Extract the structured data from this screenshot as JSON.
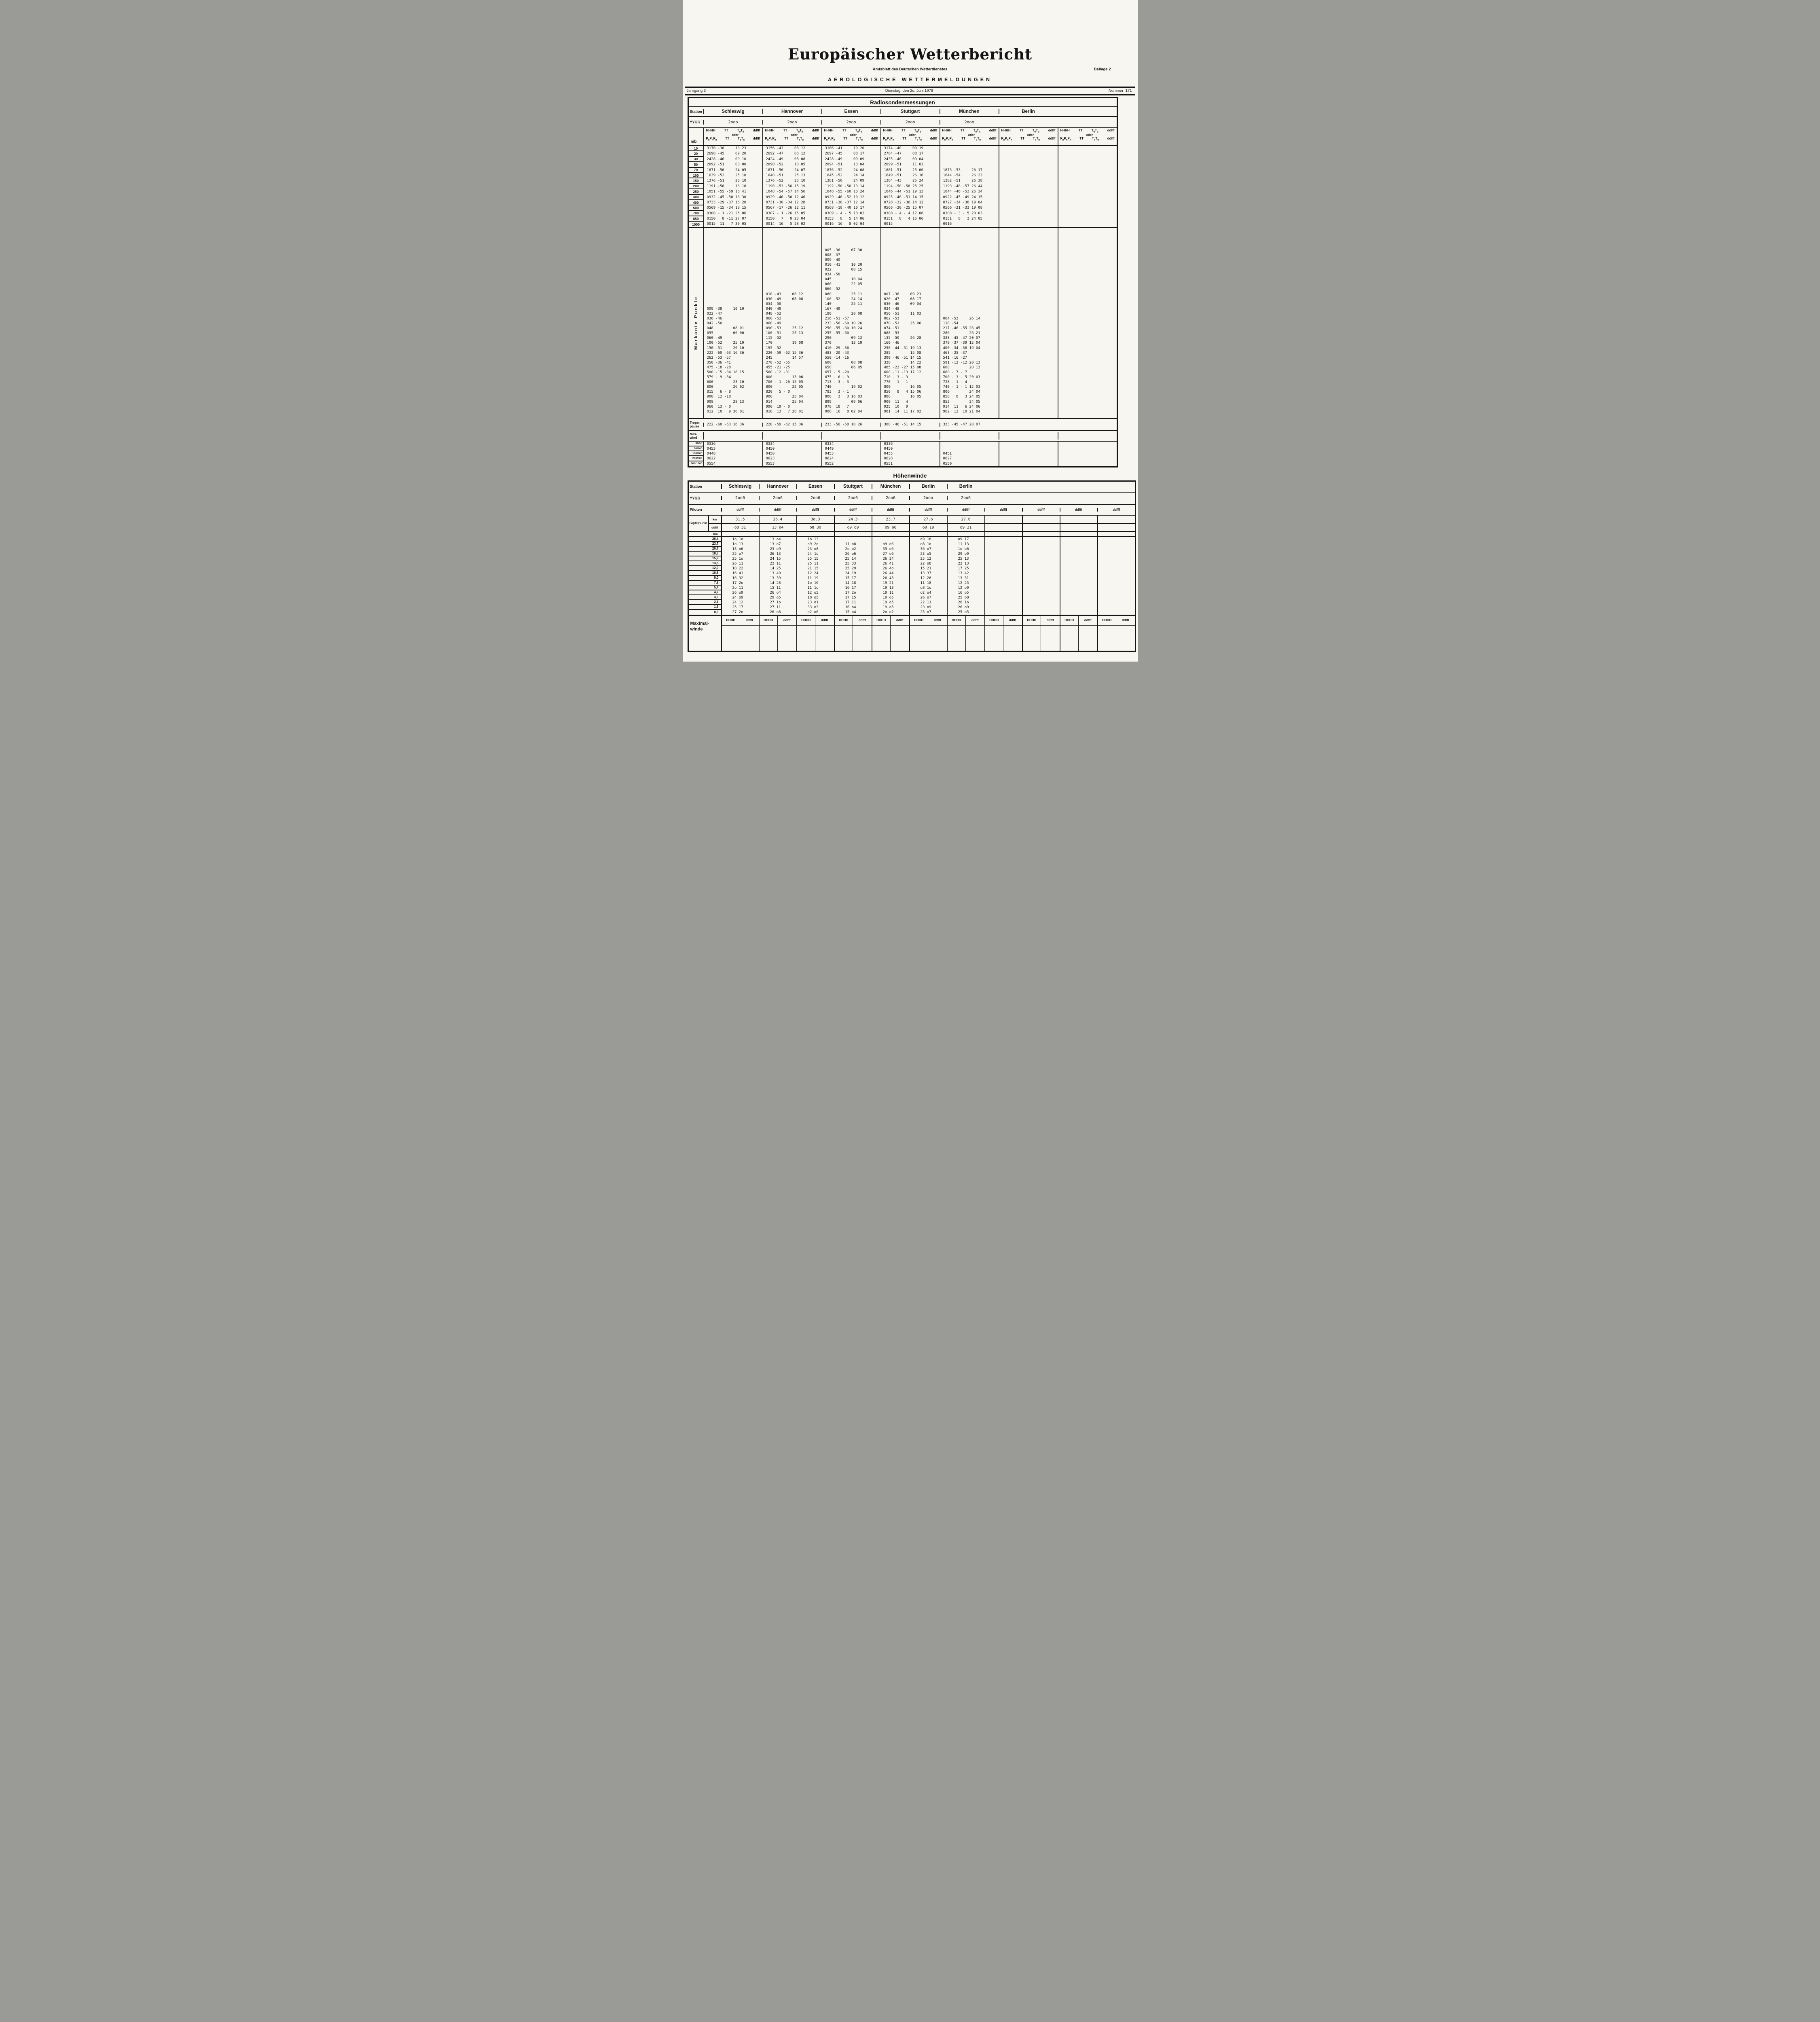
{
  "page": {
    "title": "Europäischer Wetterbericht",
    "subtitle": "Amtsblatt des Deutschen Wetterdienstes",
    "supplement": "Beilage 2",
    "section_heading": "AEROLOGISCHE WETTERMELDUNGEN",
    "volume": "Jahrgang 3",
    "date": "Dienstag, den 2o. Juni 1978",
    "number_label": "Nummer",
    "number": "171"
  },
  "radiosonde": {
    "title": "Radiosondenmessungen",
    "station_label": "Station",
    "yygg_label": "YYGG",
    "mb_label": "mb",
    "code": {
      "top": [
        "HHHH",
        "TT",
        "TdTd",
        "ddfff"
      ],
      "oder": "oder",
      "bottom": [
        "PnPnPn",
        "TT",
        "TdTd",
        "ddfff"
      ]
    },
    "stations": [
      "Schleswig",
      "Hannover",
      "Essen",
      "Stuttgart",
      "München",
      "Berlin",
      ""
    ],
    "yygg": [
      "2ooo",
      "2ooo",
      "2ooo",
      "2ooo",
      "2ooo",
      "",
      ""
    ],
    "mb_levels": [
      "10",
      "20",
      "30",
      "50",
      "70",
      "100",
      "150",
      "200",
      "250",
      "300",
      "400",
      "500",
      "700",
      "850",
      "1000"
    ],
    "data": [
      [
        "3170 -38     10 23",
        "2698 -45     09 20",
        "2428 -46     09 10",
        "2092 -51     00 00",
        "1871 -50     24 05",
        "1639 -52     25 10",
        "1376 -51     20 10",
        "1191 -58     16 18",
        "1051 -55 -59 16 41",
        "0932 -45 -50 16 30",
        "0733 -29 -37 16 20",
        "0569 -15 -34 18 15",
        "0308 - 1 -21 25 06",
        "0150   8 -11 27 07",
        "0015  11   7 30 05"
      ],
      [
        "3156 -43     08 12",
        "2692 -47     08 12",
        "2424 -49     08 08",
        "2090 -52     18 05",
        "1871 -50     24 07",
        "1640 -51     25 13",
        "1376 -52     23 10",
        "1190 -53 -56 15 19",
        "1048 -54 -57 14 56",
        "0929 -46 -50 12 46",
        "0731 -30 -34 12 28",
        "0567 -17 -26 12 11",
        "0307 - 1 -26 15 05",
        "0150   7   0 23 04",
        "0014  16   5 28 02"
      ],
      [
        "3166 -41     10 20",
        "2697 -45     08 17",
        "2428 -49     09 09",
        "2094 -51     13 04",
        "1876 -52     24 08",
        "1645 -52     24 14",
        "1381 -50     24 09",
        "1192 -50 -56 13 14",
        "1048 -55 -60 10 24",
        "0929 -46 -52 10 12",
        "0731 -30 -37 12 14",
        "0568 -18 -40 10 17",
        "0309 - 4 - 5 18 02",
        "0153   8   5 14 06",
        "0016  16   8 02 04"
      ],
      [
        "3174 -40     09 19",
        "2704 -47     08 17",
        "2435 -46     09 04",
        "2099 -51     11 03",
        "1881 -51     25 06",
        "1649 -51     26 16",
        "1384 -43     25 24",
        "1194 -50 -58 25 25",
        "1046 -44 -51 19 13",
        "0925 -46 -51 14 15",
        "0728 -32 -36 14 12",
        "0566 -20 -25 15 07",
        "0308 - 4 - 4 17 08",
        "0151   8   4 15 06",
        "0015"
      ],
      [
        "",
        "",
        "",
        "",
        "1873 -53     26 17",
        "1644 -54     26 23",
        "1382 -51     26 38",
        "1193 -48 -57 26 44",
        "1044 -46 -53 26 34",
        "0922 -45 -49 24 15",
        "0727 -34 -38 19 04",
        "0566 -21 -33 19 08",
        "0308 - 3 - 5 20 03",
        "0151   8   3 24 05",
        "0016"
      ],
      [
        "",
        "",
        "",
        "",
        "",
        "",
        "",
        "",
        "",
        "",
        "",
        "",
        "",
        "",
        ""
      ],
      [
        "",
        "",
        "",
        "",
        "",
        "",
        "",
        "",
        "",
        "",
        "",
        "",
        "",
        "",
        ""
      ]
    ],
    "markante_label": "Markante Punkte",
    "markante": [
      [
        "009 -38     10 10",
        "022 -47",
        "036 -46",
        "042 -50",
        "048         08 01",
        "055         00 00",
        "060 -49",
        "100 -52     25 10",
        "150 -51     20 10",
        "222 -60 -63 16 36",
        "262 -53 -57",
        "350 -36 -41",
        "475 -18 -28",
        "500 -15 -34 18 15",
        "579 - 9 -34",
        "600         23 10",
        "800         26 02",
        "815   6 - 8",
        "900  12 -18",
        "908         28 13",
        "960  13 - 0",
        "012  10   9 30 01"
      ],
      [
        "010 -43     08 12",
        "030 -49     08 08",
        "034 -50",
        "040 -49",
        "048 -52",
        "060 -52",
        "068 -49",
        "090 -53     25 12",
        "100 -51     25 13",
        "115 -52",
        "170         19 08",
        "195 -52",
        "220 -59 -62 15 36",
        "245         14 57",
        "270 -52 -55",
        "455 -21 -25",
        "560 -12 -31",
        "600         13 06",
        "700 - 1 -26 15 05",
        "800         22 05",
        "820   5 - 0",
        "900         25 04",
        "914         25 04",
        "990  19 - 0",
        "010  13   7 28 01"
      ],
      [
        "005 -36     07 30",
        "008 -37",
        "009 -40",
        "010 -41     10 20",
        "022         08 15",
        "034 -50",
        "045         10 04",
        "060         22 05",
        "066 -52",
        "080         25 11",
        "100 -52     24 14",
        "140         25 11",
        "167 -49",
        "180         20 08",
        "216 -51 -57",
        "233 -56 -60 10 26",
        "250 -55 -60 10 24",
        "255 -55 -60",
        "290         09 12",
        "370         13 19",
        "410 -29 -36",
        "483 -20 -43",
        "550 -14 -16",
        "600         08 08",
        "650         06 05",
        "657 - 5 -20",
        "675 - 6 - 9",
        "713 - 3 - 3",
        "740         19 02",
        "783   3 - 1",
        "800   3   3 16 03",
        "899         09 06",
        "978  18   7",
        "000  16   8 02 04"
      ],
      [
        "007 -36     09 23",
        "020 -47     08 17",
        "030 -46     09 04",
        "034 -48",
        "050 -51     11 03",
        "062 -53",
        "070 -51     25 06",
        "074 -51",
        "088 -53",
        "135 -50     26 28",
        "160 -46",
        "250 -44 -51 19 13",
        "285         15 08",
        "300 -46 -51 14 15",
        "320         14 22",
        "485 -22 -27 15 08",
        "600 -11 -13 17 12",
        "710 - 3 - 3",
        "770   1   1",
        "800         16 05",
        "850   8   4 15 06",
        "880         16 05",
        "900  11   4",
        "925  10   9",
        "981  14  11 17 02"
      ],
      [
        "064 -53     26 14",
        "118 -54",
        "217 -46 -55 26 45",
        "286         26 21",
        "333 -45 -47 20 07",
        "379 -37 -39 12 04",
        "400 -34 -38 19 04",
        "463 -25 -37",
        "541 -16 -27",
        "591 -12 -12 20 13",
        "600         20 13",
        "660 - 7 - 7",
        "700 - 3 - 5 20 03",
        "728 - 1 - 4",
        "740 - 1 - 1 12 03",
        "800         24 04",
        "850   8   3 24 05",
        "852         24 05",
        "914  11   6 24 06",
        "962  12  10 21 04"
      ],
      [],
      []
    ],
    "tropopause_label": [
      "Tropo-",
      "pause"
    ],
    "tropopause": [
      "222 -60 -63 16 36",
      "220 -59 -62 15 36",
      "233 -56 -60 10 26",
      "300 -46 -51 14 15",
      "333 -45 -47 20 07",
      "",
      ""
    ],
    "maxwind_label": [
      "Max-",
      "wind"
    ],
    "maxwind": [
      "",
      "",
      "",
      "",
      "",
      "",
      ""
    ],
    "shear_labels": [
      "30/50",
      "50/100",
      "100/200",
      "200/500",
      "500/1000"
    ],
    "shear": [
      [
        "0336",
        "0334",
        "0334",
        "0336",
        "",
        "",
        ""
      ],
      [
        "0453",
        "0450",
        "0449",
        "0450",
        "",
        "",
        ""
      ],
      [
        "0448",
        "0450",
        "0453",
        "0455",
        "0451",
        "",
        ""
      ],
      [
        "0622",
        "0623",
        "0624",
        "0628",
        "0627",
        "",
        ""
      ],
      [
        "0554",
        "0553",
        "0552",
        "0551",
        "0550",
        "",
        ""
      ]
    ]
  },
  "hoehenwinde": {
    "title": "Höhenwinde",
    "station_label": "Station",
    "yygg_label": "YYGG",
    "piloten_label": "Piloten",
    "gipfel_label": "Gipfelpunkt",
    "km_label": "km",
    "ddfff_label": "ddfff",
    "km_axis_label": "km",
    "stations": [
      "Schleswig",
      "Hannover",
      "Essen",
      "Stuttgart",
      "München",
      "Berlin",
      "Berlin",
      "",
      "",
      "",
      ""
    ],
    "yygg": [
      "2oo6",
      "2oo6",
      "2oo6",
      "2oo6",
      "2oo6",
      "2ooo",
      "2oo6",
      "",
      "",
      "",
      ""
    ],
    "piloten": [
      "ddfff",
      "ddfff",
      "ddfff",
      "ddfff",
      "ddfff",
      "ddfff",
      "ddfff",
      "ddfff",
      "ddfff",
      "ddfff",
      "ddfff"
    ],
    "gipfel_km": [
      "31.5",
      "26.4",
      "3o.3",
      "24.3",
      "23.7",
      "27.o",
      "27.6",
      "",
      "",
      "",
      ""
    ],
    "gipfel_ddfff": [
      "o8 31",
      "13 o4",
      "o8 3o",
      "o9 o9",
      "o9 o6",
      "o9 19",
      "o9 21",
      "",
      "",
      "",
      ""
    ],
    "altitudes": [
      "26,4",
      "23,7",
      "20,7",
      "18,3",
      "15,9",
      "13,5",
      "12,0",
      "10,5",
      "9,0",
      "7,2",
      "5,4",
      "4,2",
      "3,0",
      "2,1",
      "1,5",
      "0,9"
    ],
    "winds": [
      [
        "1o 1o",
        "13 o4",
        "1o 13",
        "",
        "",
        "o9 18",
        "o9 17",
        "",
        "",
        "",
        ""
      ],
      [
        "1o 13",
        "13 o7",
        "o9 2o",
        "11 o8",
        "o9 o6",
        "o8 1o",
        "11 13",
        "",
        "",
        "",
        ""
      ],
      [
        "13 o6",
        "23 o9",
        "23 o8",
        "2o o2",
        "35 o6",
        "36 o7",
        "1o o6",
        "",
        "",
        "",
        ""
      ],
      [
        "25 o7",
        "26 13",
        "24 1o",
        "26 o6",
        "27 o6",
        "23 o5",
        "29 o9",
        "",
        "",
        "",
        ""
      ],
      [
        "25 1o",
        "24 15",
        "25 15",
        "25 14",
        "26 34",
        "25 12",
        "25 13",
        "",
        "",
        "",
        ""
      ],
      [
        "2o 11",
        "22 11",
        "25 11",
        "25 33",
        "26 41",
        "22 o8",
        "22 13",
        "",
        "",
        "",
        ""
      ],
      [
        "18 22",
        "14 25",
        "21 15",
        "25 29",
        "26 4o",
        "15 21",
        "17 25",
        "",
        "",
        "",
        ""
      ],
      [
        "16 41",
        "13 49",
        "12 24",
        "24 19",
        "26 44",
        "13 37",
        "13 42",
        "",
        "",
        "",
        ""
      ],
      [
        "16 32",
        "13 39",
        "11 19",
        "15 17",
        "26 43",
        "12 28",
        "13 31",
        "",
        "",
        "",
        ""
      ],
      [
        "17 2o",
        "14 28",
        "1o 16",
        "14 18",
        "19 21",
        "11 18",
        "12 25",
        "",
        "",
        "",
        ""
      ],
      [
        "2o 11",
        "15 11",
        "11 1o",
        "16 17",
        "19 13",
        "o8 1o",
        "12 o9",
        "",
        "",
        "",
        ""
      ],
      [
        "26 o9",
        "26 o4",
        "12 o5",
        "17 2o",
        "19 11",
        "o2 o4",
        "16 o5",
        "",
        "",
        "",
        ""
      ],
      [
        "24 o9",
        "29 o5",
        "18 o5",
        "17 15",
        "19 o5",
        "26 o7",
        "25 o8",
        "",
        "",
        "",
        ""
      ],
      [
        "24 12",
        "27 1o",
        "23 o1",
        "17 11",
        "19 o5",
        "22 11",
        "26 1o",
        "",
        "",
        "",
        ""
      ],
      [
        "25 17",
        "27 11",
        "33 o3",
        "16 o4",
        "19 o5",
        "23 o9",
        "26 o9",
        "",
        "",
        "",
        ""
      ],
      [
        "27 2o",
        "26 o8",
        "o2 o6",
        "15 o4",
        "2o o2",
        "25 o7",
        "25 o5",
        "",
        "",
        "",
        ""
      ]
    ],
    "maximal_label": [
      "Maximal-",
      "winde"
    ],
    "max_header": [
      "HHHH",
      "ddfff"
    ]
  }
}
